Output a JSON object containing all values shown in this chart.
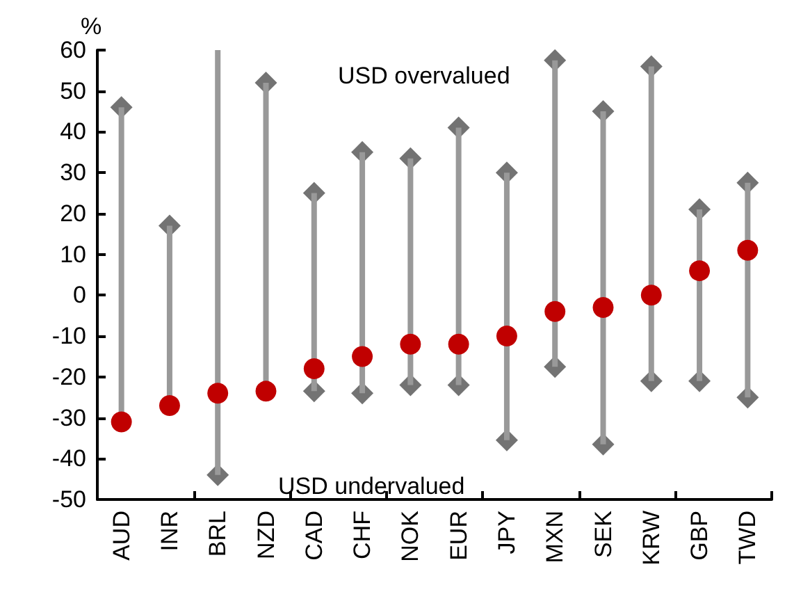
{
  "chart_data": {
    "type": "bar",
    "ylabel": "%",
    "categories": [
      "AUD",
      "INR",
      "BRL",
      "NZD",
      "CAD",
      "CHF",
      "NOK",
      "EUR",
      "JPY",
      "MXN",
      "SEK",
      "KRW",
      "GBP",
      "TWD"
    ],
    "series": [
      {
        "color": "#999999",
        "base": [
          -31,
          -27,
          -44,
          -23.5,
          -23.5,
          -24,
          -22,
          -22,
          -35.5,
          -17.5,
          -36.5,
          -21,
          -21,
          -25
        ],
        "values": [
          77,
          44,
          104,
          75.5,
          48.5,
          59,
          55.5,
          63,
          65.5,
          75,
          81.5,
          77,
          42,
          52.5
        ]
      },
      {
        "type": "scatter",
        "color": "#737373",
        "marker": "diamond",
        "values": [
          46,
          17,
          null,
          52,
          25,
          35,
          33.5,
          41,
          30,
          57.5,
          45,
          56,
          21,
          27.5
        ]
      },
      {
        "type": "scatter",
        "color": "#737373",
        "marker": "diamond",
        "values": [
          null,
          null,
          -44,
          null,
          -23.5,
          -24,
          -22,
          -22,
          -35.5,
          -17.5,
          -36.5,
          -21,
          -21,
          -25
        ]
      },
      {
        "type": "scatter",
        "color": "#c00000",
        "marker": "circle",
        "values": [
          -31,
          -27,
          -24,
          -23.5,
          -18,
          -15,
          -12,
          -12,
          -10,
          -4,
          -3,
          0,
          6,
          11
        ]
      }
    ],
    "ylim": [
      -50,
      60
    ],
    "yticks": [
      -50,
      -40,
      -30,
      -20,
      -10,
      0,
      10,
      20,
      30,
      40,
      50,
      60
    ],
    "annotations": [
      "USD overvalued",
      "USD undervalued"
    ]
  }
}
